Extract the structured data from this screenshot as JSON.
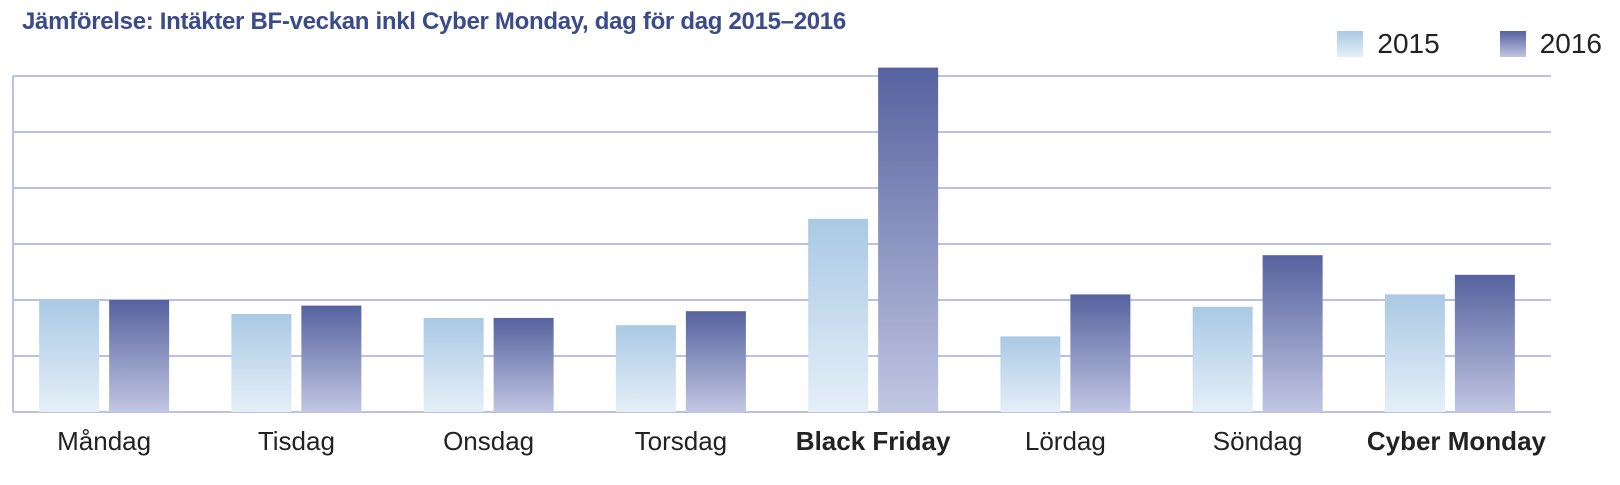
{
  "chart_data": {
    "type": "bar",
    "title": "Jämförelse: Intäkter BF-veckan inkl Cyber Monday, dag för dag 2015–2016",
    "categories": [
      "Måndag",
      "Tisdag",
      "Onsdag",
      "Torsdag",
      "Black Friday",
      "Lördag",
      "Söndag",
      "Cyber Monday"
    ],
    "highlighted_categories": [
      "Black Friday",
      "Cyber Monday"
    ],
    "series": [
      {
        "name": "2015",
        "values": [
          2.0,
          1.75,
          1.68,
          1.55,
          3.45,
          1.35,
          1.88,
          2.1
        ]
      },
      {
        "name": "2016",
        "values": [
          2.0,
          1.9,
          1.68,
          1.8,
          6.15,
          2.1,
          2.8,
          2.45
        ]
      }
    ],
    "ylim": [
      0,
      6
    ],
    "y_gridlines": 6,
    "grid": true,
    "y_tick_labels": false,
    "legend_position": "top-right",
    "colors": {
      "title": "#3b4b8a",
      "grid": "#b9c2e4",
      "s2015_top": "#a9c9e4",
      "s2015_bottom": "#e6eff8",
      "s2016_top": "#56629f",
      "s2016_bottom": "#c1c6e2"
    }
  }
}
